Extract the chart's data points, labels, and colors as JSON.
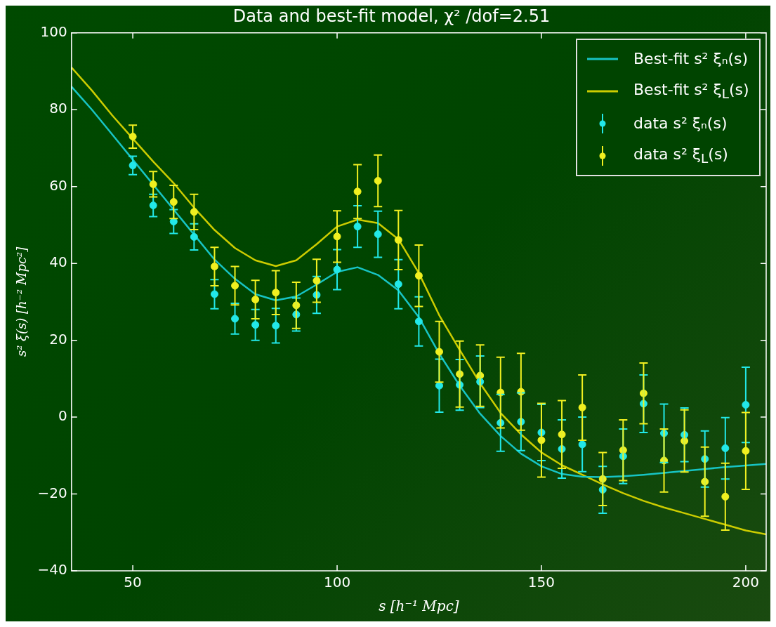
{
  "chart_data": {
    "type": "scatter",
    "title": "Data and best-fit model, χ² /dof=2.51",
    "xlabel": "s [h⁻¹ Mpc]",
    "ylabel": "s² ξ(s) [h⁻² Mpc²]",
    "xlim": [
      35,
      205
    ],
    "xticks": [
      50,
      100,
      150,
      200
    ],
    "ylim": [
      -40,
      100
    ],
    "yticks": [
      -40,
      -20,
      0,
      20,
      40,
      60,
      80,
      100
    ],
    "grid": false,
    "legend": "top right",
    "series": [
      {
        "name": "Best-fit s² ξₙ(s)",
        "type": "line",
        "color": "#17c4c4",
        "marker": "none",
        "x": [
          35,
          40,
          45,
          50,
          55,
          60,
          65,
          70,
          75,
          80,
          85,
          90,
          95,
          100,
          105,
          110,
          115,
          120,
          125,
          130,
          135,
          140,
          145,
          150,
          155,
          160,
          165,
          170,
          175,
          180,
          185,
          190,
          195,
          200,
          205
        ],
        "values": [
          86,
          80,
          73.5,
          67,
          60.5,
          54,
          47.5,
          41,
          36,
          32,
          30.4,
          31.4,
          34.5,
          37.8,
          39,
          37,
          33,
          26,
          16.5,
          8.2,
          0.9,
          -4.9,
          -9.5,
          -12.8,
          -14.8,
          -15.5,
          -15.6,
          -15.4,
          -15,
          -14.5,
          -14,
          -13.5,
          -13,
          -12.6,
          -12.2
        ]
      },
      {
        "name": "Best-fit s² ξ$_{L}$(s)",
        "type": "line",
        "color": "#cccc00",
        "marker": "none",
        "x": [
          35,
          40,
          45,
          50,
          55,
          60,
          65,
          70,
          75,
          80,
          85,
          90,
          95,
          100,
          105,
          110,
          115,
          120,
          125,
          130,
          135,
          140,
          145,
          150,
          155,
          160,
          165,
          170,
          175,
          180,
          185,
          190,
          195,
          200,
          205
        ],
        "values": [
          91,
          85,
          78.5,
          72.5,
          66.5,
          60.9,
          54.5,
          48.7,
          44,
          40.8,
          39.3,
          40.8,
          45,
          49.6,
          51.4,
          50.5,
          46.3,
          37.5,
          26.5,
          17.5,
          8.8,
          1.1,
          -4.5,
          -9.2,
          -12.5,
          -15,
          -17.5,
          -19.8,
          -21.8,
          -23.5,
          -25,
          -26.5,
          -28,
          -29.5,
          -30.5
        ]
      },
      {
        "name": "data s² ξₙ(s)",
        "type": "scatter",
        "color": "#22e8e8",
        "marker": "circle",
        "x": [
          50,
          55,
          60,
          65,
          70,
          75,
          80,
          85,
          90,
          95,
          100,
          105,
          110,
          115,
          120,
          125,
          130,
          135,
          140,
          145,
          150,
          155,
          160,
          165,
          170,
          175,
          180,
          185,
          190,
          195,
          200
        ],
        "values": [
          65.5,
          55.1,
          50.9,
          46.9,
          32,
          25.6,
          24,
          23.8,
          26.7,
          31.8,
          38.4,
          49.6,
          47.6,
          34.6,
          24.9,
          8.2,
          8.4,
          9.2,
          -1.5,
          -1.2,
          -4,
          -8.3,
          -7.1,
          -18.9,
          -10.2,
          3.5,
          -4.2,
          -4.6,
          -10.9,
          -8.1,
          3.2
        ],
        "errors": [
          2.4,
          2.9,
          3.1,
          3.4,
          3.8,
          4,
          4,
          4.5,
          4.3,
          4.8,
          5.2,
          5.4,
          6,
          6.4,
          6.4,
          6.9,
          6.6,
          6.7,
          7.4,
          7.5,
          7.3,
          7.6,
          7.1,
          6.1,
          7.1,
          7.5,
          7.6,
          7,
          7.3,
          8,
          9.8
        ]
      },
      {
        "name": "data s² ξ$_{L}$(s)",
        "type": "scatter",
        "color": "#f0f020",
        "marker": "circle",
        "x": [
          50,
          55,
          60,
          65,
          70,
          75,
          80,
          85,
          90,
          95,
          100,
          105,
          110,
          115,
          120,
          125,
          130,
          135,
          140,
          145,
          150,
          155,
          160,
          165,
          170,
          175,
          180,
          185,
          190,
          195,
          200
        ],
        "values": [
          73,
          60.6,
          56,
          53.4,
          39.2,
          34.2,
          30.6,
          32.4,
          29.1,
          35.5,
          47,
          58.7,
          61.5,
          46.1,
          36.8,
          17,
          11.2,
          10.8,
          6.4,
          6.6,
          -6,
          -4.5,
          2.5,
          -16.1,
          -8.6,
          6.2,
          -11.3,
          -6.2,
          -16.8,
          -20.7,
          -8.8
        ],
        "errors": [
          3,
          3.3,
          4.3,
          4.6,
          5,
          5,
          5,
          5.7,
          6,
          5.6,
          6.7,
          7,
          6.7,
          7.7,
          8,
          7.9,
          8.6,
          8,
          9.2,
          10,
          9.6,
          8.8,
          8.5,
          6.9,
          7.9,
          7.9,
          8.2,
          8.1,
          9,
          8.7,
          10
        ]
      }
    ]
  }
}
